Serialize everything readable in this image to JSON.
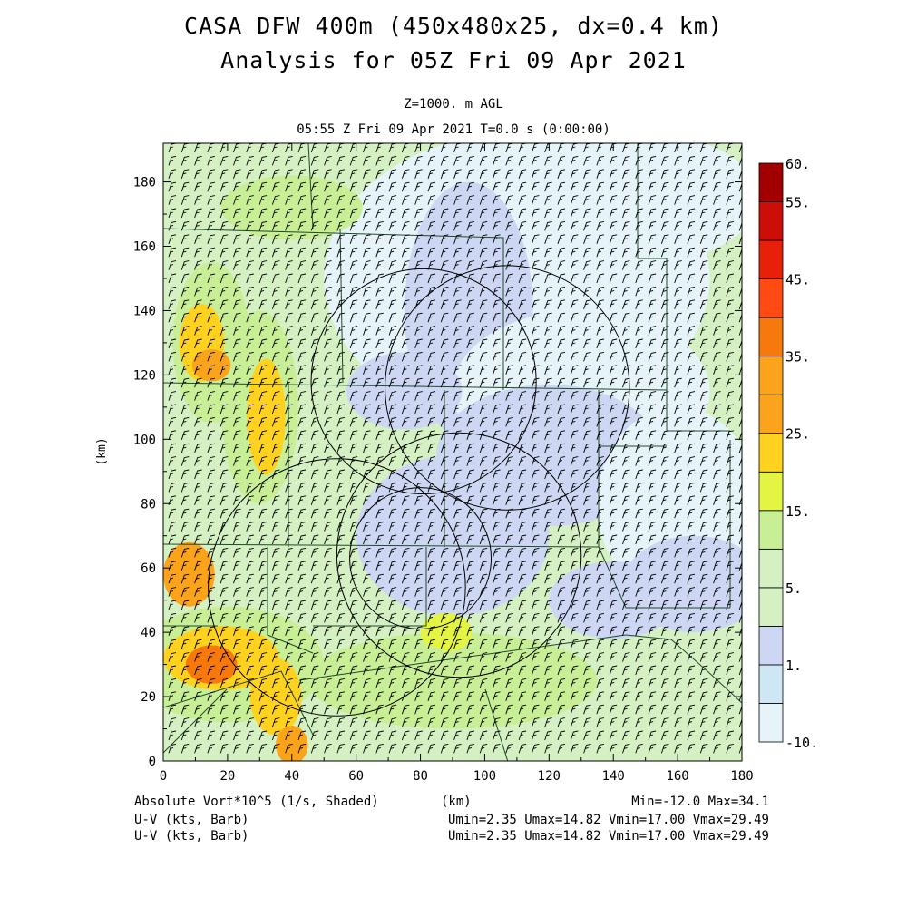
{
  "header": {
    "title_line1": "CASA DFW 400m (450x480x25, dx=0.4 km)",
    "title_line2": "Analysis for 05Z Fri 09 Apr 2021",
    "level": "Z=1000. m AGL",
    "valid_time": "05:55 Z Fri 09 Apr 2021   T=0.0 s (0:00:00)"
  },
  "footer": {
    "field1": "Absolute Vort*10^5 (1/s, Shaded)",
    "field2": "U-V (kts, Barb)",
    "field3": "U-V (kts, Barb)",
    "xunit": "(km)",
    "minmax": "Min=-12.0 Max=34.1",
    "uv1": "Umin=2.35 Umax=14.82 Vmin=17.00 Vmax=29.49",
    "uv2": "Umin=2.35 Umax=14.82 Vmin=17.00 Vmax=29.49"
  },
  "colors": {
    "levels": [
      "#e6f4fa",
      "#cfe6f5",
      "#cdd7f4",
      "#d5f0c2",
      "#c8ee96",
      "#e3f542",
      "#ffd21f",
      "#fba41b",
      "#f7780d",
      "#ff4a14",
      "#e8200a",
      "#cc0d08",
      "#a20000"
    ]
  },
  "chart_data": {
    "type": "heatmap",
    "xlabel": "",
    "ylabel": "(km)",
    "xlim": [
      0,
      180
    ],
    "ylim": [
      0,
      192
    ],
    "xticks": [
      "0",
      "20",
      "40",
      "60",
      "80",
      "100",
      "120",
      "140",
      "160",
      "180"
    ],
    "yticks": [
      "0",
      "20",
      "40",
      "60",
      "80",
      "100",
      "120",
      "140",
      "160",
      "180"
    ],
    "colorbar_labels": [
      "60.",
      "55.",
      "45.",
      "35.",
      "25.",
      "15.",
      "5.",
      "1.",
      "-10."
    ],
    "range_rings_km": [
      {
        "x": 107,
        "y": 116,
        "r": 38
      },
      {
        "x": 81,
        "y": 118,
        "r": 35
      },
      {
        "x": 92,
        "y": 64,
        "r": 38
      },
      {
        "x": 54,
        "y": 54,
        "r": 40
      },
      {
        "x": 80,
        "y": 63,
        "r": 22
      }
    ]
  }
}
